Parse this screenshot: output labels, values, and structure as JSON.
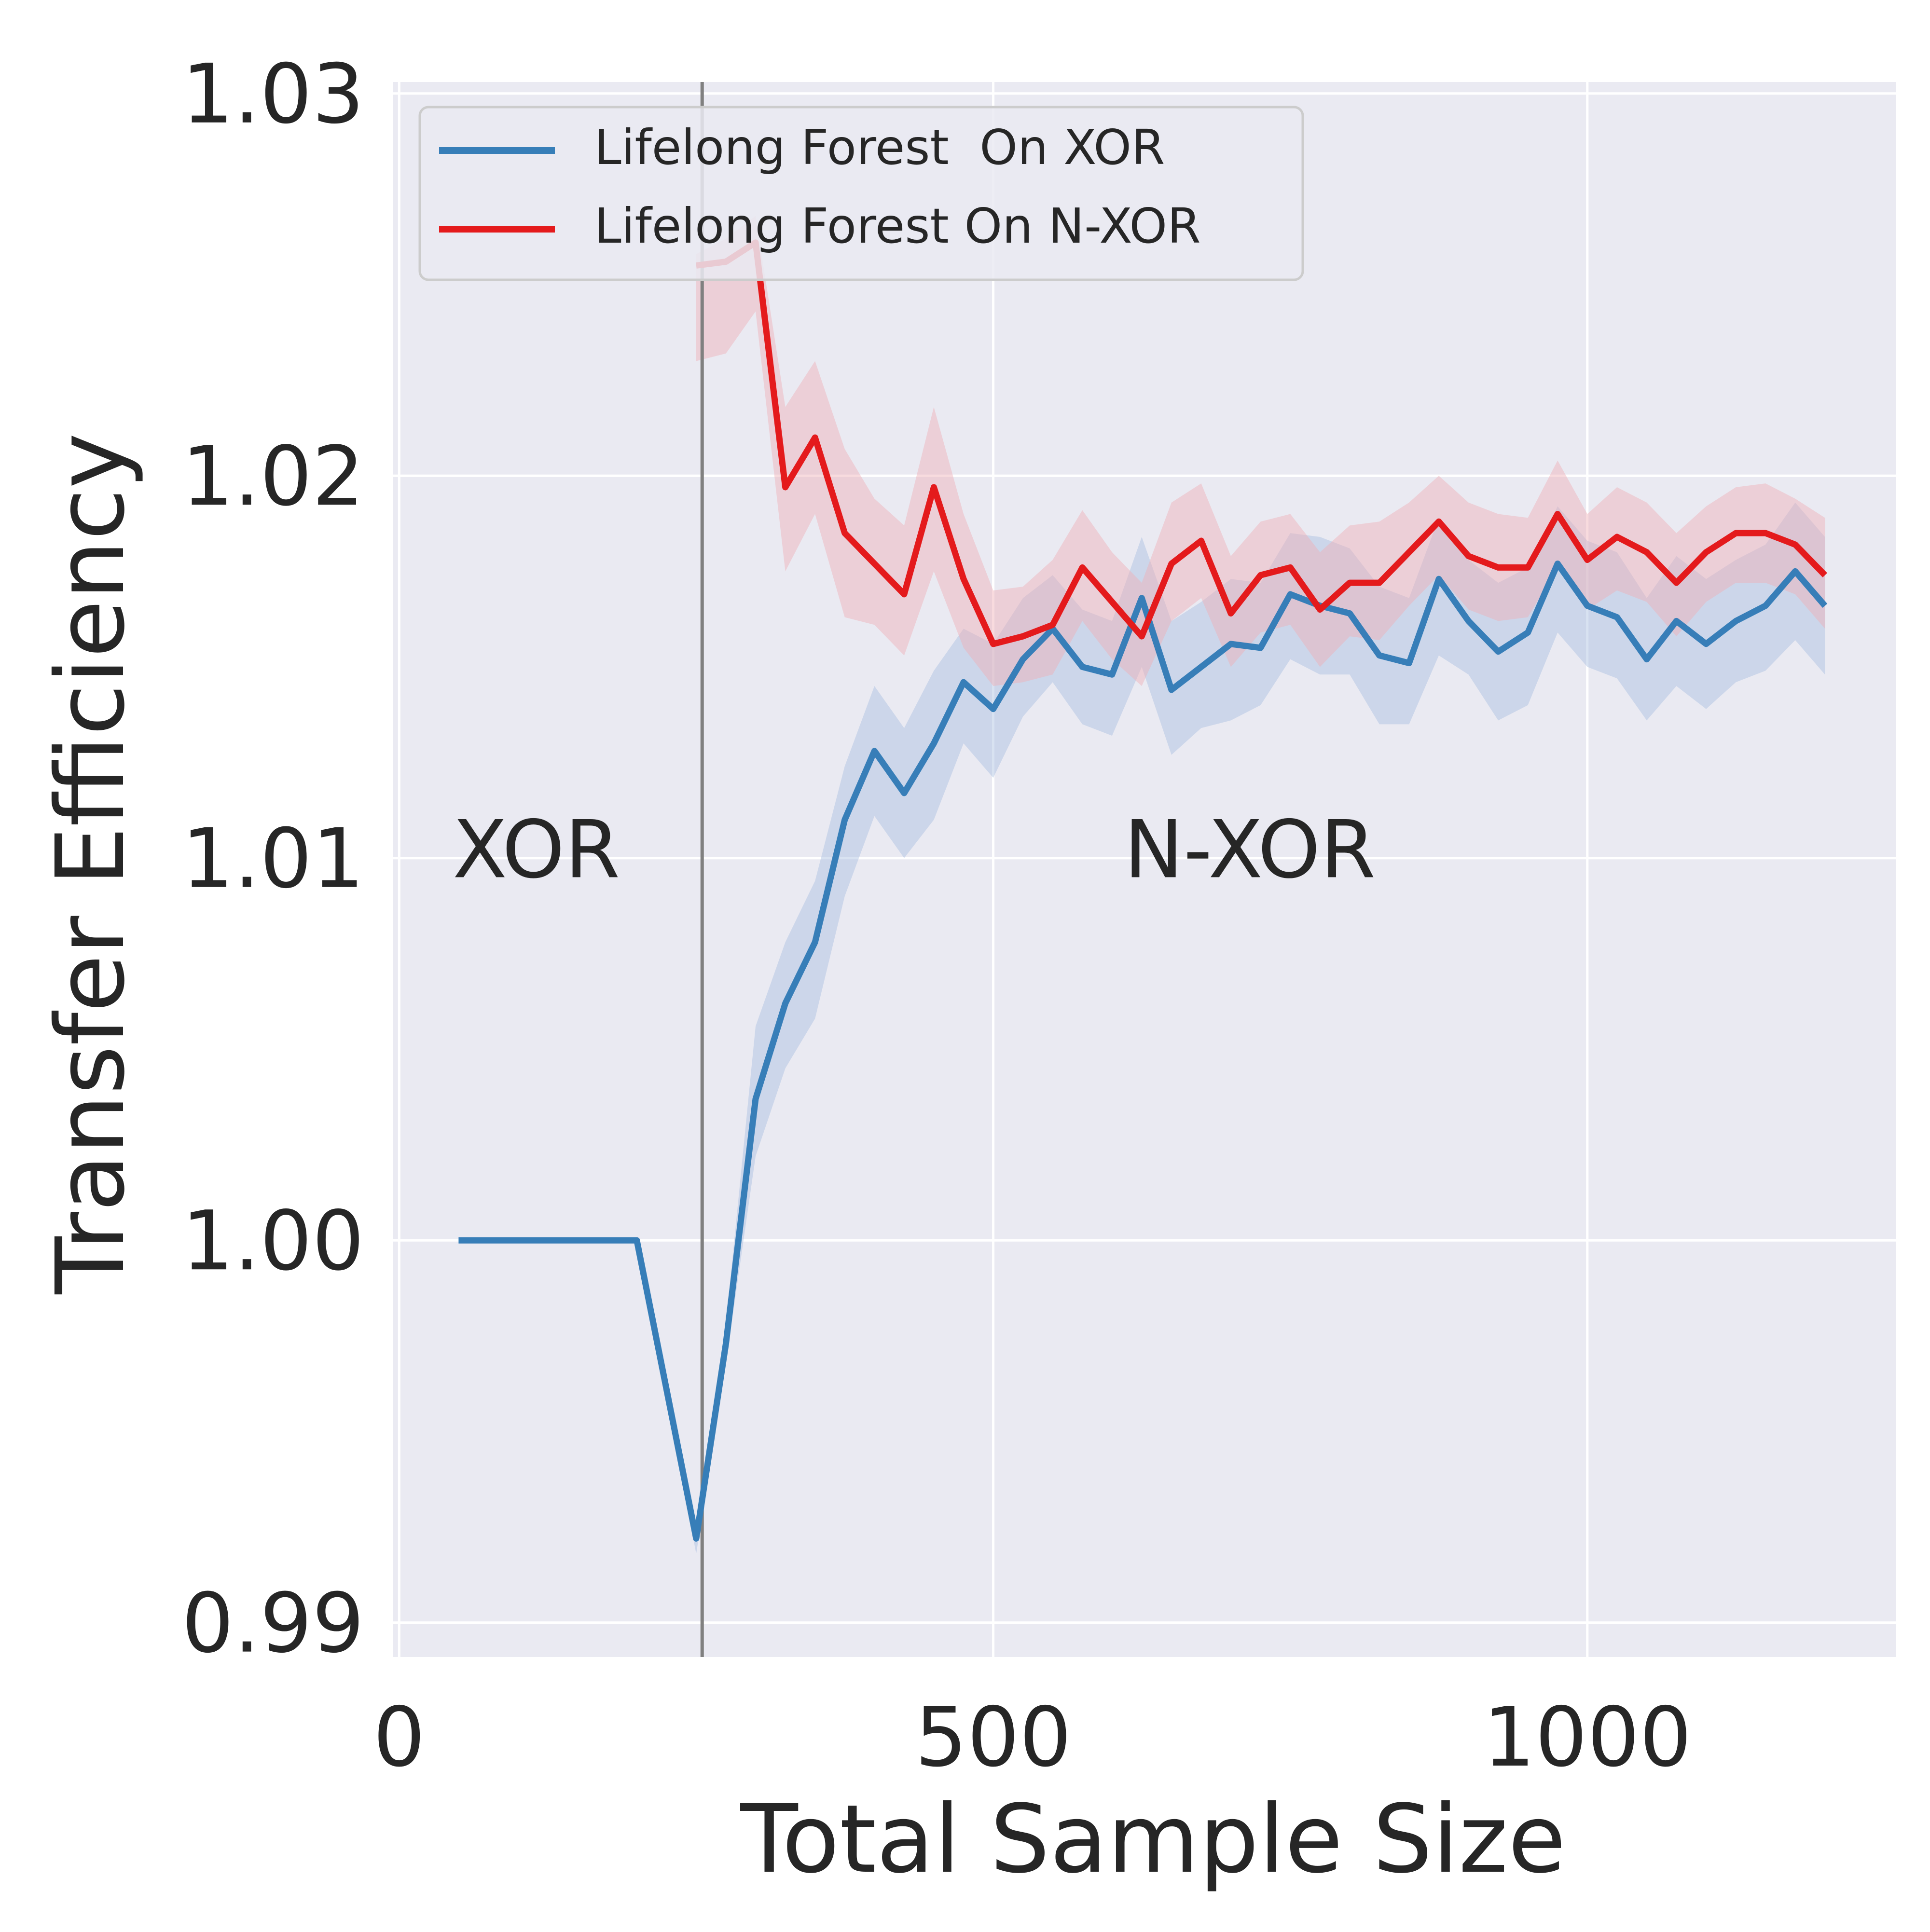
{
  "chart_data": {
    "type": "line",
    "title": "",
    "xlabel": "Total Sample Size",
    "ylabel": "Transfer Efficiency",
    "xlim": [
      -5,
      1260
    ],
    "ylim": [
      0.9891,
      1.0303
    ],
    "xticks": [
      0,
      500,
      1000
    ],
    "xtick_labels": [
      "0",
      "500",
      "1000"
    ],
    "yticks": [
      0.99,
      1.0,
      1.01,
      1.02,
      1.03
    ],
    "ytick_labels": [
      "0.99",
      "1.00",
      "1.01",
      "1.02",
      "1.03"
    ],
    "grid": true,
    "legend_position": "upper-left",
    "vline_x": 255,
    "annotations": [
      {
        "text": "XOR",
        "x": 45,
        "y": 1.0095
      },
      {
        "text": "N-XOR",
        "x": 610,
        "y": 1.0095
      }
    ],
    "series": [
      {
        "name": "Lifelong Forest  On XOR",
        "color": "#377eb8",
        "band_color": "#a8bfe0",
        "x": [
          50,
          75,
          100,
          125,
          150,
          175,
          200,
          225,
          250,
          275,
          300,
          325,
          350,
          375,
          400,
          425,
          450,
          475,
          500,
          525,
          550,
          575,
          600,
          625,
          650,
          675,
          700,
          725,
          750,
          775,
          800,
          825,
          850,
          875,
          900,
          925,
          950,
          975,
          1000,
          1025,
          1050,
          1075,
          1100,
          1125,
          1150,
          1175,
          1200
        ],
        "y": [
          1.0,
          1.0,
          1.0,
          1.0,
          1.0,
          1.0,
          1.0,
          0.9961,
          0.9922,
          0.9973,
          1.0037,
          1.0062,
          1.0078,
          1.011,
          1.0128,
          1.0117,
          1.013,
          1.0146,
          1.0139,
          1.0152,
          1.016,
          1.015,
          1.0148,
          1.0168,
          1.0144,
          1.015,
          1.0156,
          1.0155,
          1.0169,
          1.0166,
          1.0164,
          1.0153,
          1.0151,
          1.0173,
          1.0162,
          1.0154,
          1.0159,
          1.0177,
          1.0166,
          1.0163,
          1.0152,
          1.0162,
          1.0156,
          1.0162,
          1.0166,
          1.0175,
          1.0166
        ],
        "lower": [
          1.0,
          1.0,
          1.0,
          1.0,
          1.0,
          1.0,
          1.0,
          0.9959,
          0.9918,
          0.9968,
          1.0022,
          1.0045,
          1.0058,
          1.009,
          1.0111,
          1.01,
          1.011,
          1.013,
          1.0121,
          1.0137,
          1.0146,
          1.0135,
          1.0132,
          1.015,
          1.0127,
          1.0134,
          1.0136,
          1.014,
          1.0152,
          1.0148,
          1.0148,
          1.0135,
          1.0135,
          1.0153,
          1.0148,
          1.0136,
          1.014,
          1.0159,
          1.015,
          1.0147,
          1.0136,
          1.0145,
          1.0139,
          1.0146,
          1.0149,
          1.0157,
          1.0148
        ],
        "upper": [
          1.0,
          1.0,
          1.0,
          1.0,
          1.0,
          1.0,
          1.0,
          0.9963,
          0.9926,
          0.9978,
          1.0056,
          1.0078,
          1.0094,
          1.0124,
          1.0145,
          1.0134,
          1.0149,
          1.016,
          1.0156,
          1.0168,
          1.0174,
          1.0165,
          1.0162,
          1.0184,
          1.0162,
          1.0167,
          1.0173,
          1.0172,
          1.0185,
          1.0184,
          1.0181,
          1.0171,
          1.0168,
          1.0189,
          1.0178,
          1.0172,
          1.0176,
          1.0192,
          1.0183,
          1.018,
          1.0168,
          1.0179,
          1.0173,
          1.0178,
          1.0182,
          1.0193,
          1.0184
        ]
      },
      {
        "name": "Lifelong Forest On N-XOR",
        "color": "#e41a1c",
        "band_color": "#f0b0b6",
        "x": [
          250,
          275,
          300,
          325,
          350,
          375,
          400,
          425,
          450,
          475,
          500,
          525,
          550,
          575,
          600,
          625,
          650,
          675,
          700,
          725,
          750,
          775,
          800,
          825,
          850,
          875,
          900,
          925,
          950,
          975,
          1000,
          1025,
          1050,
          1075,
          1100,
          1125,
          1150,
          1175,
          1200
        ],
        "y": [
          1.0255,
          1.0256,
          1.0261,
          1.0197,
          1.021,
          1.0185,
          1.0177,
          1.0169,
          1.0197,
          1.0173,
          1.0156,
          1.0158,
          1.0161,
          1.0176,
          1.0167,
          1.0158,
          1.0177,
          1.0183,
          1.0164,
          1.0174,
          1.0176,
          1.0165,
          1.0172,
          1.0172,
          1.018,
          1.0188,
          1.0179,
          1.0176,
          1.0176,
          1.019,
          1.0178,
          1.0184,
          1.018,
          1.0172,
          1.018,
          1.0185,
          1.0185,
          1.0182,
          1.0174
        ],
        "lower": [
          1.023,
          1.0232,
          1.0243,
          1.0175,
          1.019,
          1.0163,
          1.0161,
          1.0153,
          1.0175,
          1.0155,
          1.0145,
          1.0146,
          1.0148,
          1.0162,
          1.0152,
          1.0145,
          1.0162,
          1.0168,
          1.015,
          1.0159,
          1.0161,
          1.015,
          1.0158,
          1.0157,
          1.0166,
          1.0174,
          1.0165,
          1.0162,
          1.0163,
          1.0176,
          1.0165,
          1.017,
          1.0167,
          1.0158,
          1.0167,
          1.0172,
          1.0172,
          1.0169,
          1.016
        ],
        "upper": [
          1.0258,
          1.0262,
          1.0268,
          1.0218,
          1.023,
          1.0207,
          1.0194,
          1.0187,
          1.0218,
          1.019,
          1.017,
          1.0171,
          1.0178,
          1.0191,
          1.018,
          1.0172,
          1.0193,
          1.0198,
          1.0179,
          1.0188,
          1.019,
          1.018,
          1.0187,
          1.0188,
          1.0193,
          1.02,
          1.0193,
          1.019,
          1.0189,
          1.0204,
          1.019,
          1.0197,
          1.0193,
          1.0185,
          1.0192,
          1.0197,
          1.0198,
          1.0194,
          1.0189
        ]
      }
    ]
  }
}
